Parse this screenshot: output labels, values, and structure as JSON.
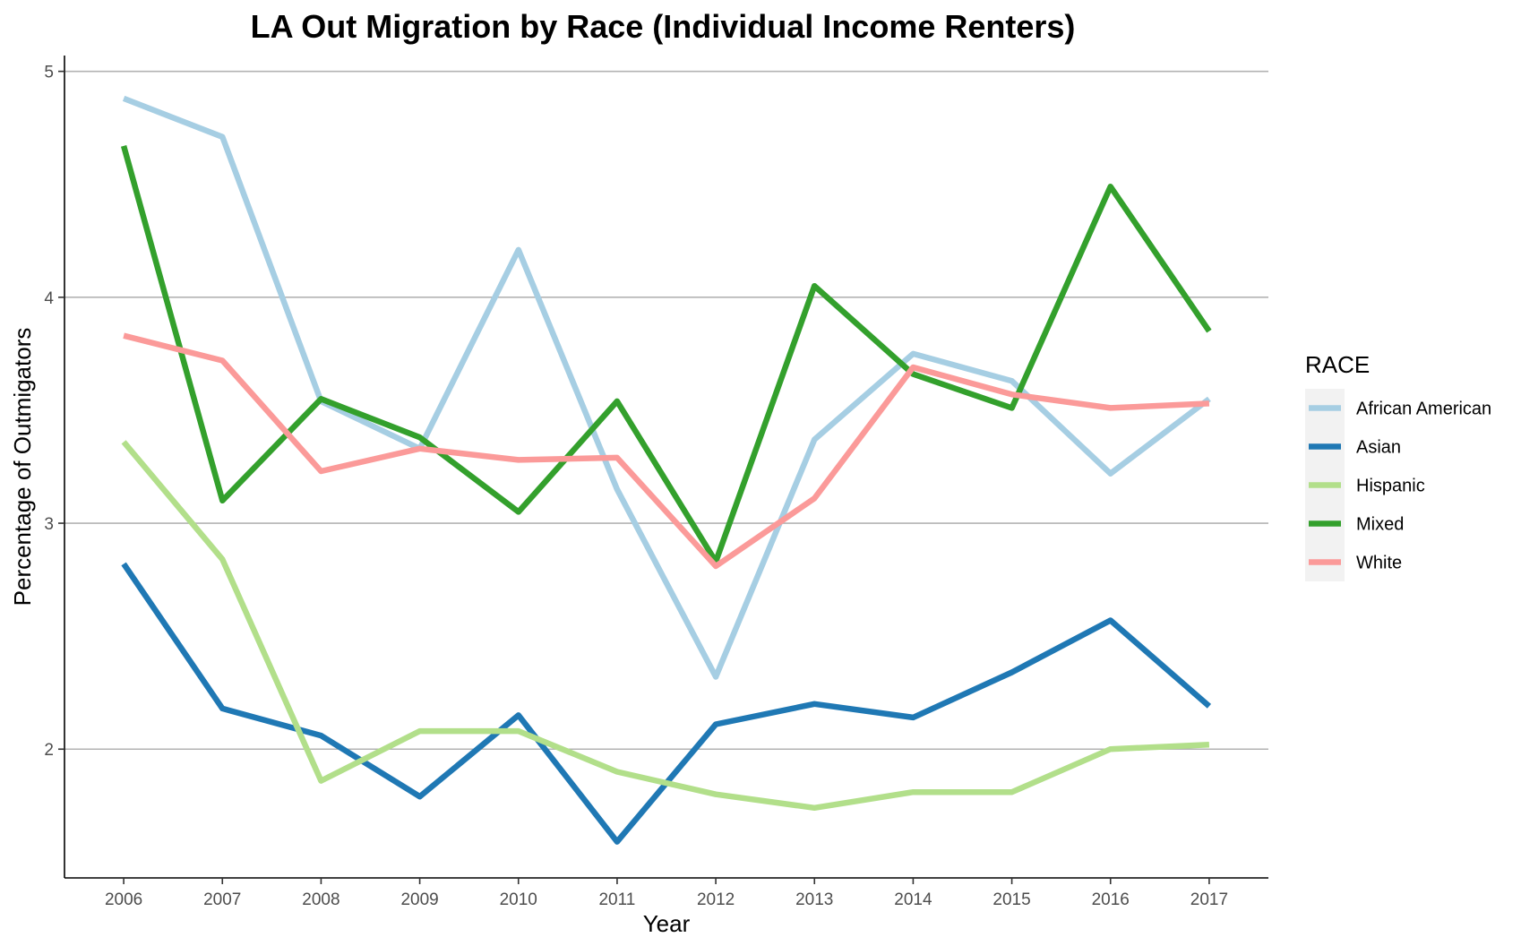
{
  "chart_data": {
    "type": "line",
    "title": "LA Out Migration by Race (Individual Income Renters)",
    "xlabel": "Year",
    "ylabel": "Percentage of Outmigators",
    "x": [
      2006,
      2007,
      2008,
      2009,
      2010,
      2011,
      2012,
      2013,
      2014,
      2015,
      2016,
      2017
    ],
    "xlim": [
      2005.4,
      2017.6
    ],
    "ylim": [
      1.43,
      5.07
    ],
    "yticks": [
      2,
      3,
      4,
      5
    ],
    "grid": "horizontal major",
    "legend": {
      "title": "RACE",
      "placement": "right"
    },
    "series": [
      {
        "name": "African American",
        "color": "#A6CEE3",
        "values": [
          4.88,
          4.71,
          3.54,
          3.33,
          4.21,
          3.15,
          2.32,
          3.37,
          3.75,
          3.63,
          3.22,
          3.55
        ]
      },
      {
        "name": "Asian",
        "color": "#1F78B4",
        "values": [
          2.82,
          2.18,
          2.06,
          1.79,
          2.15,
          1.59,
          2.11,
          2.2,
          2.14,
          2.34,
          2.57,
          2.19
        ]
      },
      {
        "name": "Hispanic",
        "color": "#B2DF8A",
        "values": [
          3.36,
          2.84,
          1.86,
          2.08,
          2.08,
          1.9,
          1.8,
          1.74,
          1.81,
          1.81,
          2.0,
          2.02
        ]
      },
      {
        "name": "Mixed",
        "color": "#33A02C",
        "values": [
          4.67,
          3.1,
          3.55,
          3.38,
          3.05,
          3.54,
          2.83,
          4.05,
          3.66,
          3.51,
          4.49,
          3.85
        ]
      },
      {
        "name": "White",
        "color": "#FB9A99",
        "values": [
          3.83,
          3.72,
          3.23,
          3.33,
          3.28,
          3.29,
          2.81,
          3.11,
          3.69,
          3.57,
          3.51,
          3.53
        ]
      }
    ]
  }
}
